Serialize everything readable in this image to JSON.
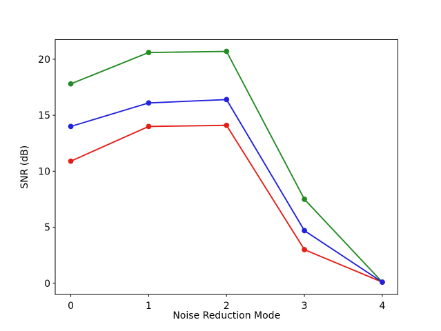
{
  "chart_data": {
    "type": "line",
    "title": "",
    "xlabel": "Noise Reduction Mode",
    "ylabel": "SNR (dB)",
    "x": [
      0,
      1,
      2,
      3,
      4
    ],
    "series": [
      {
        "name": "red",
        "color": "#e22018",
        "values": [
          10.9,
          14.0,
          14.1,
          3.0,
          0.1
        ]
      },
      {
        "name": "green",
        "color": "#228b22",
        "values": [
          17.8,
          20.6,
          20.7,
          7.5,
          0.1
        ]
      },
      {
        "name": "blue",
        "color": "#2222dd",
        "values": [
          14.0,
          16.1,
          16.4,
          4.7,
          0.1
        ]
      }
    ],
    "xticks": [
      0,
      1,
      2,
      3,
      4
    ],
    "yticks": [
      0,
      5,
      10,
      15,
      20
    ],
    "xlim": [
      -0.2,
      4.2
    ],
    "ylim": [
      -1.0,
      21.75
    ],
    "grid": false,
    "legend": "none",
    "marker": "circle",
    "background_color": "#ffffff",
    "axis_color": "#000000"
  }
}
